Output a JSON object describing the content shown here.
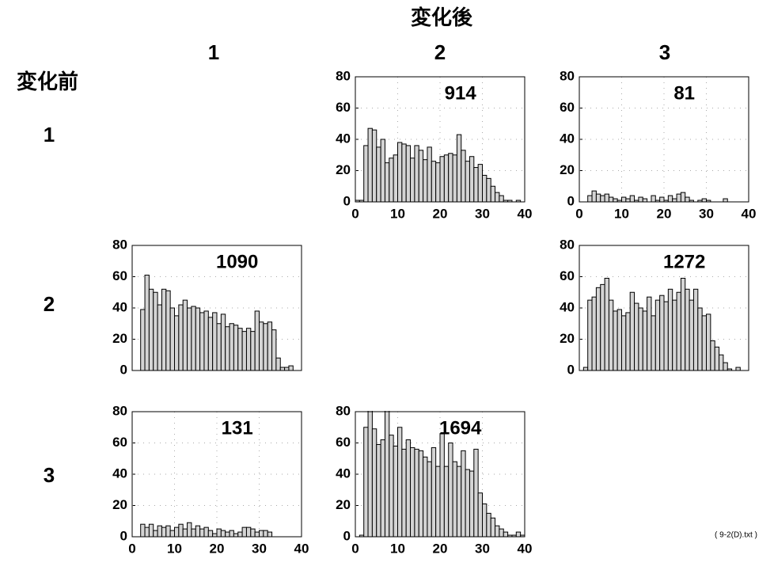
{
  "header": {
    "column_title": "変化後",
    "row_title": "変化前",
    "column_labels": [
      "1",
      "2",
      "3"
    ],
    "row_labels": [
      "1",
      "2",
      "3"
    ],
    "footnote": "( 9-2(D).txt )"
  },
  "chart_data": [
    {
      "type": "histogram",
      "annotation": "914",
      "color": "#d4d4d4",
      "bins": [
        0,
        1,
        2,
        3,
        4,
        5,
        6,
        7,
        8,
        9,
        10,
        11,
        12,
        13,
        14,
        15,
        16,
        17,
        18,
        19,
        20,
        21,
        22,
        23,
        24,
        25,
        26,
        27,
        28,
        29,
        30,
        31,
        32,
        33,
        34,
        35,
        36,
        37,
        38,
        39,
        40
      ],
      "counts": [
        1,
        1,
        36,
        47,
        46,
        35,
        40,
        25,
        28,
        30,
        38,
        37,
        36,
        28,
        36,
        33,
        27,
        35,
        26,
        25,
        29,
        30,
        31,
        30,
        43,
        33,
        26,
        29,
        22,
        24,
        17,
        15,
        10,
        6,
        4,
        1,
        1,
        0,
        1,
        0
      ],
      "xlim": [
        0,
        40
      ],
      "xticks": [
        0,
        10,
        20,
        30,
        40
      ],
      "ylim": [
        0,
        80
      ],
      "yticks": [
        0,
        20,
        40,
        60,
        80
      ],
      "grid": true
    },
    {
      "type": "histogram",
      "annotation": "81",
      "color": "#d4d4d4",
      "bins": [
        0,
        1,
        2,
        3,
        4,
        5,
        6,
        7,
        8,
        9,
        10,
        11,
        12,
        13,
        14,
        15,
        16,
        17,
        18,
        19,
        20,
        21,
        22,
        23,
        24,
        25,
        26,
        27,
        28,
        29,
        30,
        31,
        32,
        33,
        34,
        35,
        36,
        37,
        38,
        39,
        40
      ],
      "counts": [
        0,
        0,
        4,
        7,
        5,
        4,
        5,
        3,
        2,
        1,
        3,
        2,
        4,
        1,
        3,
        2,
        0,
        4,
        1,
        3,
        1,
        4,
        2,
        5,
        6,
        3,
        1,
        0,
        1,
        2,
        1,
        0,
        0,
        0,
        2,
        0,
        0,
        0,
        0,
        0
      ],
      "xlim": [
        0,
        40
      ],
      "xticks": [
        0,
        10,
        20,
        30,
        40
      ],
      "ylim": [
        0,
        80
      ],
      "yticks": [
        0,
        20,
        40,
        60,
        80
      ],
      "grid": true
    },
    {
      "type": "histogram",
      "annotation": "1090",
      "color": "#d4d4d4",
      "bins": [
        0,
        1,
        2,
        3,
        4,
        5,
        6,
        7,
        8,
        9,
        10,
        11,
        12,
        13,
        14,
        15,
        16,
        17,
        18,
        19,
        20,
        21,
        22,
        23,
        24,
        25,
        26,
        27,
        28,
        29,
        30,
        31,
        32,
        33,
        34,
        35,
        36,
        37,
        38,
        39,
        40
      ],
      "counts": [
        0,
        0,
        39,
        61,
        52,
        50,
        42,
        52,
        51,
        40,
        35,
        42,
        45,
        40,
        41,
        40,
        37,
        38,
        34,
        37,
        30,
        36,
        28,
        30,
        29,
        27,
        25,
        27,
        25,
        38,
        31,
        30,
        31,
        26,
        8,
        2,
        2,
        3,
        0,
        0
      ],
      "xlim": [
        0,
        40
      ],
      "ylim": [
        0,
        80
      ],
      "yticks": [
        0,
        20,
        40,
        60,
        80
      ],
      "grid": true
    },
    {
      "type": "histogram",
      "annotation": "1272",
      "color": "#d4d4d4",
      "bins": [
        0,
        1,
        2,
        3,
        4,
        5,
        6,
        7,
        8,
        9,
        10,
        11,
        12,
        13,
        14,
        15,
        16,
        17,
        18,
        19,
        20,
        21,
        22,
        23,
        24,
        25,
        26,
        27,
        28,
        29,
        30,
        31,
        32,
        33,
        34,
        35,
        36,
        37,
        38,
        39,
        40
      ],
      "counts": [
        0,
        2,
        45,
        47,
        53,
        55,
        59,
        45,
        38,
        39,
        35,
        37,
        50,
        43,
        40,
        38,
        47,
        35,
        45,
        48,
        44,
        52,
        45,
        50,
        59,
        52,
        45,
        52,
        40,
        35,
        36,
        19,
        15,
        10,
        5,
        1,
        0,
        2,
        0,
        0
      ],
      "xlim": [
        0,
        40
      ],
      "ylim": [
        0,
        80
      ],
      "yticks": [
        0,
        20,
        40,
        60,
        80
      ],
      "grid": true
    },
    {
      "type": "histogram",
      "annotation": "131",
      "color": "#d4d4d4",
      "bins": [
        0,
        1,
        2,
        3,
        4,
        5,
        6,
        7,
        8,
        9,
        10,
        11,
        12,
        13,
        14,
        15,
        16,
        17,
        18,
        19,
        20,
        21,
        22,
        23,
        24,
        25,
        26,
        27,
        28,
        29,
        30,
        31,
        32,
        33,
        34,
        35,
        36,
        37,
        38,
        39,
        40
      ],
      "counts": [
        0,
        0,
        8,
        6,
        8,
        4,
        7,
        6,
        7,
        4,
        6,
        8,
        5,
        9,
        5,
        7,
        5,
        6,
        4,
        2,
        5,
        4,
        3,
        4,
        2,
        3,
        6,
        6,
        5,
        3,
        4,
        4,
        3,
        0,
        0,
        0,
        0,
        0,
        0,
        0
      ],
      "xlim": [
        0,
        40
      ],
      "xticks": [
        0,
        10,
        20,
        30,
        40
      ],
      "ylim": [
        0,
        80
      ],
      "yticks": [
        0,
        20,
        40,
        60,
        80
      ],
      "grid": true
    },
    {
      "type": "histogram",
      "annotation": "1694",
      "color": "#d4d4d4",
      "bins": [
        0,
        1,
        2,
        3,
        4,
        5,
        6,
        7,
        8,
        9,
        10,
        11,
        12,
        13,
        14,
        15,
        16,
        17,
        18,
        19,
        20,
        21,
        22,
        23,
        24,
        25,
        26,
        27,
        28,
        29,
        30,
        31,
        32,
        33,
        34,
        35,
        36,
        37,
        38,
        39,
        40
      ],
      "counts": [
        0,
        1,
        70,
        81,
        69,
        59,
        62,
        84,
        65,
        58,
        70,
        56,
        62,
        57,
        56,
        55,
        51,
        48,
        57,
        45,
        66,
        45,
        60,
        48,
        45,
        55,
        43,
        42,
        56,
        28,
        21,
        15,
        12,
        7,
        5,
        3,
        1,
        1,
        3,
        1
      ],
      "xlim": [
        0,
        40
      ],
      "xticks": [
        0,
        10,
        20,
        30,
        40
      ],
      "ylim": [
        0,
        80
      ],
      "yticks": [
        0,
        20,
        40,
        60,
        80
      ],
      "grid": true
    }
  ]
}
